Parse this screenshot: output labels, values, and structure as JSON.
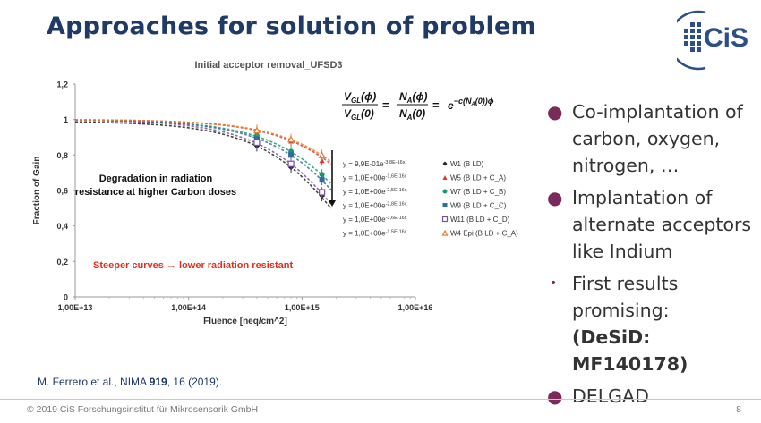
{
  "slide": {
    "title": "Approaches for solution of problem",
    "logo_text": "CiS",
    "citation_authors": "M. Ferrero et al., NIMA ",
    "citation_volume": "919",
    "citation_rest": ", 16 (2019).",
    "footer": "© 2019 CiS Forschungsinstitut für Mikrosensorik GmbH",
    "page_number": "8",
    "colors": {
      "title": "#1f3a66",
      "bullet": "#7a2b5c",
      "logo": "#2b4f86"
    }
  },
  "bullets": [
    {
      "text": "Co-implantation of carbon, oxygen, nitrogen, …"
    },
    {
      "text": "Implantation of alternate acceptors like Indium"
    },
    {
      "text": "First results promising:",
      "bold": "(DeSiD: MF140178)"
    },
    {
      "text": "DELGAD"
    }
  ],
  "chart_data": {
    "type": "scatter",
    "title": "Initial acceptor removal_UFSD3",
    "xlabel": "Fluence [neq/cm^2]",
    "ylabel": "Fraction of Gain",
    "x_scale": "log",
    "xlim": [
      10000000000000.0,
      1e+16
    ],
    "ylim": [
      0,
      1.2
    ],
    "x_ticks": [
      "1,00E+13",
      "1,00E+14",
      "1,00E+15",
      "1,00E+16"
    ],
    "y_ticks": [
      "0",
      "0,2",
      "0,4",
      "0,6",
      "0,8",
      "1",
      "1,2"
    ],
    "grid": false,
    "formula": "V_GL(φ)/V_GL(0) = N_A(φ)/N_A(0) = e^(−c(N_A(0))φ)",
    "annotation_degradation": "Degradation in radiation resistance at higher Carbon doses",
    "annotation_steeper": "Steeper curves → lower radiation resistant",
    "legend_position": "right",
    "series": [
      {
        "name": "W1 (B LD)",
        "fit": "y = 9,9E-01e",
        "exp": "-3,8E-16x",
        "color": "#222222",
        "marker": "diamond",
        "a": 0.99,
        "c": 3.8e-16,
        "x": [
          400000000000000.0,
          800000000000000.0,
          1500000000000000.0
        ],
        "y": [
          0.85,
          0.73,
          0.57
        ]
      },
      {
        "name": "W5 (B LD + C_A)",
        "fit": "y = 1,0E+00e",
        "exp": "-1,6E-16x",
        "color": "#d93a2b",
        "marker": "triangle",
        "a": 1.0,
        "c": 1.6e-16,
        "x": [
          400000000000000.0,
          800000000000000.0,
          1500000000000000.0
        ],
        "y": [
          0.94,
          0.88,
          0.77
        ]
      },
      {
        "name": "W7 (B LD + C_B)",
        "fit": "y = 1,0E+00e",
        "exp": "-2,5E-16x",
        "color": "#1a9a6c",
        "marker": "circle",
        "a": 1.0,
        "c": 2.5e-16,
        "x": [
          400000000000000.0,
          800000000000000.0,
          1500000000000000.0
        ],
        "y": [
          0.91,
          0.82,
          0.69
        ]
      },
      {
        "name": "W9 (B LD + C_C)",
        "fit": "y = 1,0E+00e",
        "exp": "-2,8E-16x",
        "color": "#2e6da4",
        "marker": "square",
        "a": 1.0,
        "c": 2.8e-16,
        "x": [
          400000000000000.0,
          800000000000000.0,
          1500000000000000.0
        ],
        "y": [
          0.89,
          0.8,
          0.66
        ]
      },
      {
        "name": "W11 (B LD + C_D)",
        "fit": "y = 1,0E+00e",
        "exp": "-3,6E-16x",
        "color": "#7b4fa0",
        "marker": "square-open",
        "a": 1.0,
        "c": 3.6e-16,
        "x": [
          400000000000000.0,
          800000000000000.0,
          1500000000000000.0
        ],
        "y": [
          0.87,
          0.75,
          0.59
        ]
      },
      {
        "name": "W4 Epi (B LD + C_A)",
        "fit": "y = 1,0E+00e",
        "exp": "-1,5E-16x",
        "color": "#e87e2c",
        "marker": "triangle-open",
        "a": 1.0,
        "c": 1.5e-16,
        "x": [
          400000000000000.0,
          800000000000000.0,
          1500000000000000.0
        ],
        "y": [
          0.94,
          0.89,
          0.8
        ]
      }
    ]
  }
}
